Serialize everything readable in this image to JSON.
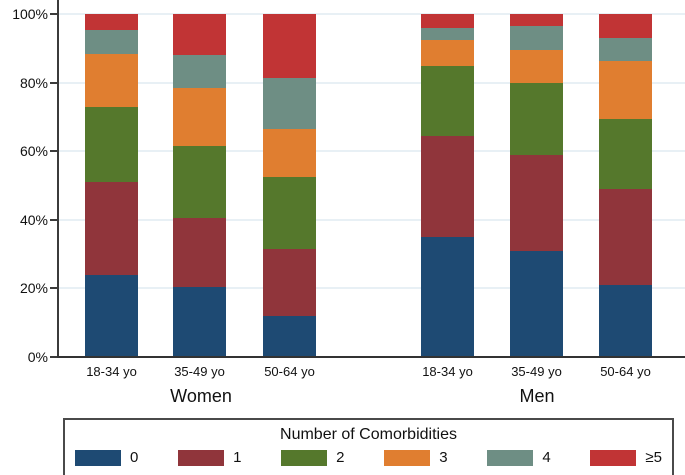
{
  "chart_data": {
    "type": "bar",
    "stacked": true,
    "unit": "percent",
    "title": "",
    "xlabel": "",
    "ylabel": "",
    "ylim": [
      0,
      100
    ],
    "grid": true,
    "yticks": [
      0,
      20,
      40,
      60,
      80,
      100
    ],
    "ytick_labels": [
      "0%",
      "20%",
      "40%",
      "60%",
      "80%",
      "100%"
    ],
    "group_labels": [
      "Women",
      "Men"
    ],
    "categories": [
      "18-34 yo",
      "35-49 yo",
      "50-64 yo",
      "18-34 yo",
      "35-49 yo",
      "50-64 yo"
    ],
    "category_group_index": [
      0,
      0,
      0,
      1,
      1,
      1
    ],
    "legend_title": "Number of Comorbidities",
    "legend_position": "bottom",
    "series": [
      {
        "name": "0",
        "color": "#1e4a73",
        "values": [
          24,
          20.5,
          12,
          35,
          31,
          21
        ]
      },
      {
        "name": "1",
        "color": "#90353b",
        "values": [
          27,
          20,
          19.5,
          29.5,
          28,
          28
        ]
      },
      {
        "name": "2",
        "color": "#55782c",
        "values": [
          22,
          21,
          21,
          20.5,
          21,
          20.5
        ]
      },
      {
        "name": "3",
        "color": "#e07e30",
        "values": [
          15.5,
          17,
          14,
          7.5,
          9.5,
          17
        ]
      },
      {
        "name": "4",
        "color": "#6e8e84",
        "values": [
          7,
          9.5,
          15,
          3.5,
          7,
          6.5
        ]
      },
      {
        "name": "≥5",
        "color": "#c13435",
        "values": [
          4.5,
          12,
          18.5,
          4,
          3.5,
          7
        ]
      }
    ]
  },
  "colors": {
    "axis": "#3b3b3b",
    "gridline": "#e8f0f5",
    "text": "#111111",
    "navy": "#1e4a73",
    "maroon": "#90353b",
    "forest_green": "#55782c",
    "orange": "#e07e30",
    "teal": "#6e8e84",
    "cranberry": "#c13435"
  }
}
